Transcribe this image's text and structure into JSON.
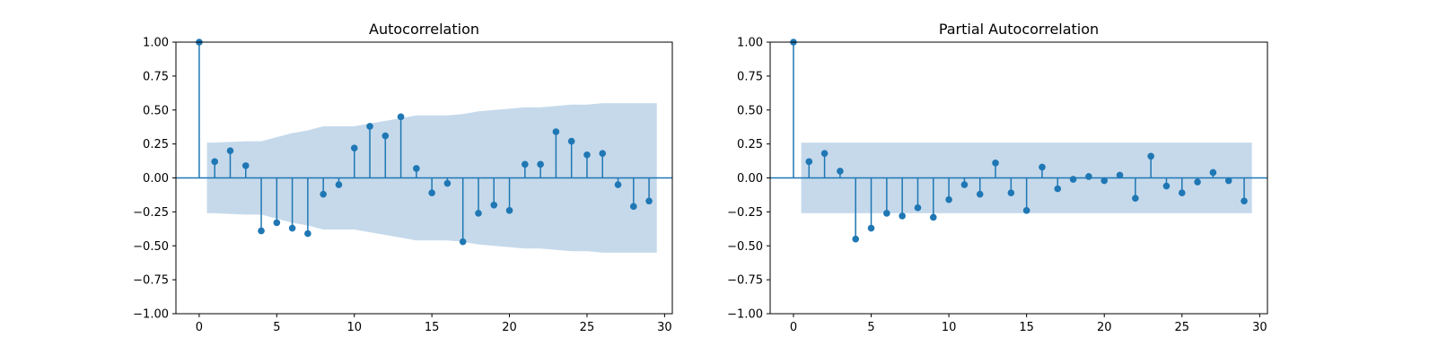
{
  "chart_data": [
    {
      "type": "stem",
      "title": "Autocorrelation",
      "xlabel": "",
      "ylabel": "",
      "xlim": [
        -1.5,
        30.5
      ],
      "ylim": [
        -1.0,
        1.0
      ],
      "xticks": [
        0,
        5,
        10,
        15,
        20,
        25,
        30
      ],
      "yticks": [
        -1.0,
        -0.75,
        -0.5,
        -0.25,
        0.0,
        0.25,
        0.5,
        0.75,
        1.0
      ],
      "ytick_labels": [
        "−1.00",
        "−0.75",
        "−0.50",
        "−0.25",
        "0.00",
        "0.25",
        "0.50",
        "0.75",
        "1.00"
      ],
      "grid": false,
      "x": [
        0,
        1,
        2,
        3,
        4,
        5,
        6,
        7,
        8,
        9,
        10,
        11,
        12,
        13,
        14,
        15,
        16,
        17,
        18,
        19,
        20,
        21,
        22,
        23,
        24,
        25,
        26,
        27,
        28,
        29
      ],
      "values": [
        1.0,
        0.12,
        0.2,
        0.09,
        -0.39,
        -0.33,
        -0.37,
        -0.41,
        -0.12,
        -0.05,
        0.22,
        0.38,
        0.31,
        0.45,
        0.07,
        -0.11,
        -0.04,
        -0.47,
        -0.26,
        -0.2,
        -0.24,
        0.1,
        0.1,
        0.34,
        0.27,
        0.17,
        0.18,
        -0.05,
        -0.21,
        -0.17
      ],
      "confidence_band": {
        "x": [
          0.5,
          1,
          2,
          3,
          4,
          5,
          6,
          7,
          8,
          9,
          10,
          11,
          12,
          13,
          14,
          15,
          16,
          17,
          18,
          19,
          20,
          21,
          22,
          23,
          24,
          25,
          26,
          27,
          28,
          29,
          29.5
        ],
        "upper": [
          0.26,
          0.26,
          0.265,
          0.27,
          0.27,
          0.3,
          0.33,
          0.35,
          0.38,
          0.38,
          0.38,
          0.4,
          0.42,
          0.44,
          0.46,
          0.46,
          0.46,
          0.47,
          0.49,
          0.5,
          0.51,
          0.52,
          0.52,
          0.53,
          0.54,
          0.54,
          0.55,
          0.55,
          0.55,
          0.55,
          0.55
        ]
      },
      "colors": {
        "stem": "#1f77b4",
        "band": "#c5d9eb",
        "baseline": "#1f77b4"
      }
    },
    {
      "type": "stem",
      "title": "Partial Autocorrelation",
      "xlabel": "",
      "ylabel": "",
      "xlim": [
        -1.5,
        30.5
      ],
      "ylim": [
        -1.0,
        1.0
      ],
      "xticks": [
        0,
        5,
        10,
        15,
        20,
        25,
        30
      ],
      "yticks": [
        -1.0,
        -0.75,
        -0.5,
        -0.25,
        0.0,
        0.25,
        0.5,
        0.75,
        1.0
      ],
      "ytick_labels": [
        "−1.00",
        "−0.75",
        "−0.50",
        "−0.25",
        "0.00",
        "0.25",
        "0.50",
        "0.75",
        "1.00"
      ],
      "grid": false,
      "x": [
        0,
        1,
        2,
        3,
        4,
        5,
        6,
        7,
        8,
        9,
        10,
        11,
        12,
        13,
        14,
        15,
        16,
        17,
        18,
        19,
        20,
        21,
        22,
        23,
        24,
        25,
        26,
        27,
        28,
        29
      ],
      "values": [
        1.0,
        0.12,
        0.18,
        0.05,
        -0.45,
        -0.37,
        -0.26,
        -0.28,
        -0.22,
        -0.29,
        -0.16,
        -0.05,
        -0.12,
        0.11,
        -0.11,
        -0.24,
        0.08,
        -0.08,
        -0.01,
        0.01,
        -0.02,
        0.02,
        -0.15,
        0.16,
        -0.06,
        -0.11,
        -0.03,
        0.04,
        -0.02,
        -0.17
      ],
      "confidence_band": {
        "x": [
          0.5,
          29.5
        ],
        "upper": [
          0.26,
          0.26
        ]
      },
      "colors": {
        "stem": "#1f77b4",
        "band": "#c5d9eb",
        "baseline": "#1f77b4"
      }
    }
  ]
}
